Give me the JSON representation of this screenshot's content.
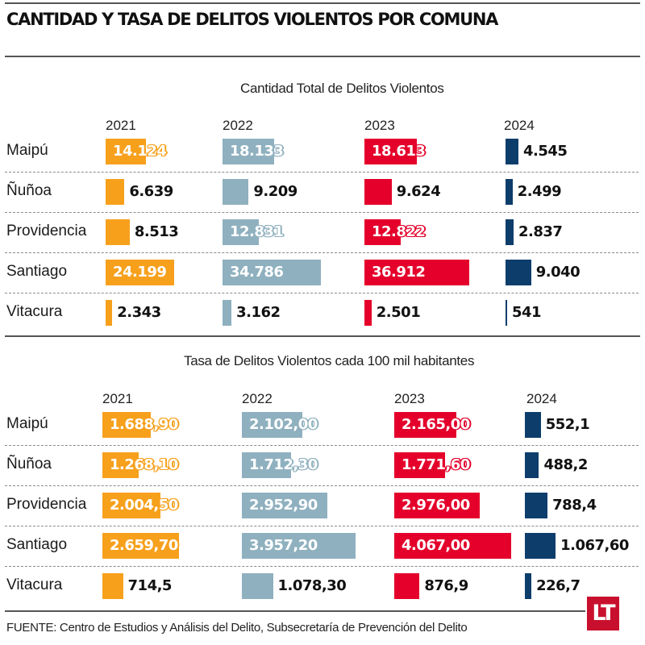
{
  "header": {
    "title": "CANTIDAD Y TASA DE DELITOS VIOLENTOS POR COMUNA"
  },
  "footer": {
    "source": "FUENTE: Centro de Estudios y Análisis del Delito, Subsecretaría de Prevención del Delito",
    "logo": "LT"
  },
  "colors": {
    "2021": "#f7a01c",
    "2022": "#8fb0bf",
    "2023": "#e4002b",
    "2024": "#0d3d6b"
  },
  "chart_data": [
    {
      "type": "bar",
      "title": "Cantidad Total de Delitos Violentos",
      "orientation": "horizontal-small-multiples",
      "categories": [
        "Maipú",
        "Ñuñoa",
        "Providencia",
        "Santiago",
        "Vitacura"
      ],
      "series": [
        {
          "name": "2021",
          "values": [
            14124,
            6639,
            8513,
            24199,
            2343
          ],
          "labels": [
            "14.124",
            "6.639",
            "8.513",
            "24.199",
            "2.343"
          ]
        },
        {
          "name": "2022",
          "values": [
            18133,
            9209,
            12831,
            34786,
            3162
          ],
          "labels": [
            "18.133",
            "9.209",
            "12.831",
            "34.786",
            "3.162"
          ]
        },
        {
          "name": "2023",
          "values": [
            18613,
            9624,
            12822,
            36912,
            2501
          ],
          "labels": [
            "18.613",
            "9.624",
            "12.822",
            "36.912",
            "2.501"
          ]
        },
        {
          "name": "2024",
          "values": [
            4545,
            2499,
            2837,
            9040,
            541
          ],
          "labels": [
            "4.545",
            "2.499",
            "2.837",
            "9.040",
            "541"
          ]
        }
      ],
      "xlabel": "",
      "ylabel": "",
      "grid": false,
      "legend": "none (year column headers)"
    },
    {
      "type": "bar",
      "title": "Tasa de Delitos Violentos cada 100 mil habitantes",
      "orientation": "horizontal-small-multiples",
      "categories": [
        "Maipú",
        "Ñuñoa",
        "Providencia",
        "Santiago",
        "Vitacura"
      ],
      "series": [
        {
          "name": "2021",
          "values": [
            1688.9,
            1268.1,
            2004.5,
            2659.7,
            714.5
          ],
          "labels": [
            "1.688,90",
            "1.268,10",
            "2.004,50",
            "2.659,70",
            "714,5"
          ]
        },
        {
          "name": "2022",
          "values": [
            2102.0,
            1712.3,
            2952.9,
            3957.2,
            1078.3
          ],
          "labels": [
            "2.102,00",
            "1.712,30",
            "2.952,90",
            "3.957,20",
            "1.078,30"
          ]
        },
        {
          "name": "2023",
          "values": [
            2165.0,
            1771.6,
            2976.0,
            4067.0,
            876.9
          ],
          "labels": [
            "2.165,00",
            "1.771,60",
            "2.976,00",
            "4.067,00",
            "876,9"
          ]
        },
        {
          "name": "2024",
          "values": [
            552.1,
            488.2,
            788.4,
            1067.6,
            226.7
          ],
          "labels": [
            "552,1",
            "488,2",
            "788,4",
            "1.067,60",
            "226,7"
          ]
        }
      ],
      "xlabel": "",
      "ylabel": "",
      "grid": false,
      "legend": "none (year column headers)"
    }
  ]
}
